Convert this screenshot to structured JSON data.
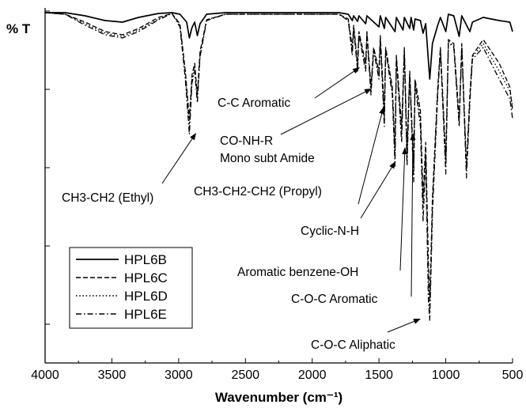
{
  "chart_data": {
    "type": "line",
    "ylabel": "% T",
    "xlabel": "Wavenumber (cm⁻¹)",
    "xlim": [
      4000,
      500
    ],
    "x_reversed": true,
    "x_ticks": [
      "4000",
      "3500",
      "3000",
      "2500",
      "2000",
      "1500",
      "1000",
      "500"
    ],
    "y_tick_labels_shown": false,
    "legend_position": "bottom-left",
    "series": [
      {
        "name": "HPL6B",
        "line_style": "solid",
        "dash": "",
        "color": "#000000"
      },
      {
        "name": "HPL6C",
        "line_style": "dashed",
        "dash": "6,3",
        "color": "#000000"
      },
      {
        "name": "HPL6D",
        "line_style": "dotted",
        "dash": "1.6,2.6",
        "color": "#000000"
      },
      {
        "name": "HPL6E",
        "line_style": "dash-dot",
        "dash": "7,3,1.6,3",
        "color": "#000000"
      }
    ],
    "annotations": [
      {
        "lines": [
          "C-C Aromatic"
        ],
        "x": 1650
      },
      {
        "lines": [
          "CO-NH-R",
          "Mono subt Amide"
        ],
        "x": 1560
      },
      {
        "lines": [
          "CH3-CH2 (Ethyl)"
        ],
        "x": 2870
      },
      {
        "lines": [
          "CH3-CH2-CH2 (Propyl)"
        ],
        "x": 1470
      },
      {
        "lines": [
          "Cyclic-N-H"
        ],
        "x": 1370
      },
      {
        "lines": [
          "Aromatic benzene-OH"
        ],
        "x": 1320
      },
      {
        "lines": [
          "C-O-C Aromatic"
        ],
        "x": 1220
      },
      {
        "lines": [
          "C-O-C Aliphatic"
        ],
        "x": 1100
      }
    ]
  }
}
